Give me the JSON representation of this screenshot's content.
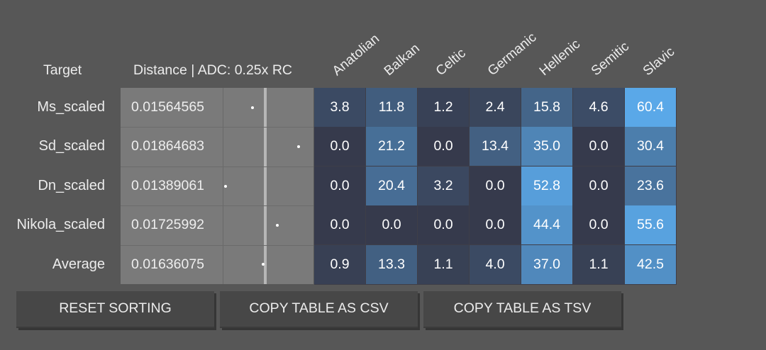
{
  "header": {
    "target_label": "Target",
    "distance_label": "Distance | ADC: 0.25x RC"
  },
  "populations": [
    "Anatolian",
    "Balkan",
    "Celtic",
    "Germanic",
    "Hellenic",
    "Semitic",
    "Slavic"
  ],
  "rows": [
    {
      "name": "Ms_scaled",
      "distance": "0.01564565",
      "values": [
        "3.8",
        "11.8",
        "1.2",
        "2.4",
        "15.8",
        "4.6",
        "60.4"
      ]
    },
    {
      "name": "Sd_scaled",
      "distance": "0.01864683",
      "values": [
        "0.0",
        "21.2",
        "0.0",
        "13.4",
        "35.0",
        "0.0",
        "30.4"
      ]
    },
    {
      "name": "Dn_scaled",
      "distance": "0.01389061",
      "values": [
        "0.0",
        "20.4",
        "3.2",
        "0.0",
        "52.8",
        "0.0",
        "23.6"
      ]
    },
    {
      "name": "Nikola_scaled",
      "distance": "0.01725992",
      "values": [
        "0.0",
        "0.0",
        "0.0",
        "0.0",
        "44.4",
        "0.0",
        "55.6"
      ]
    },
    {
      "name": "Average",
      "distance": "0.01636075",
      "values": [
        "0.9",
        "13.3",
        "1.1",
        "4.0",
        "37.0",
        "1.1",
        "42.5"
      ]
    }
  ],
  "buttons": {
    "reset_sorting": "RESET SORTING",
    "copy_csv": "COPY TABLE AS CSV",
    "copy_tsv": "COPY TABLE AS TSV"
  },
  "colors": {
    "background": "#575757",
    "distance_cell": "#7a7a7a",
    "value_low": "#363a4c",
    "value_high": "#5aa8e8"
  }
}
